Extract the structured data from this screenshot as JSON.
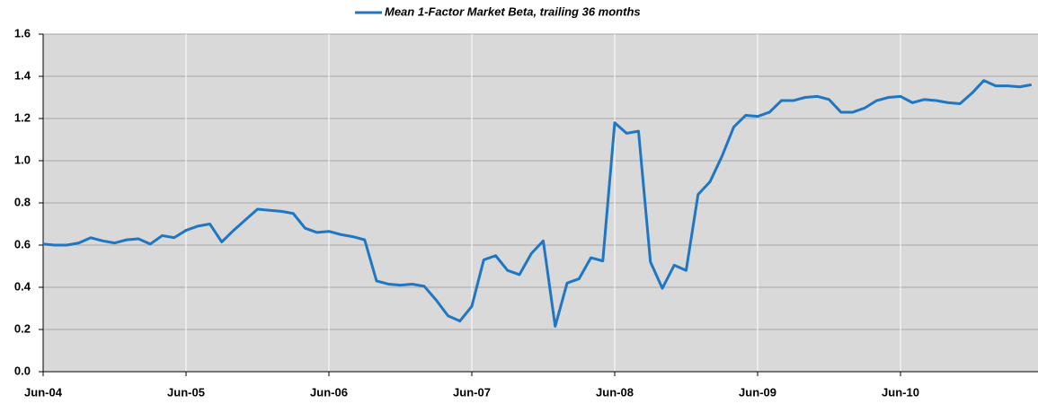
{
  "chart_data": {
    "type": "line",
    "categories": [
      "Jun-04",
      null,
      null,
      null,
      null,
      null,
      null,
      null,
      null,
      null,
      null,
      null,
      "Jun-05",
      null,
      null,
      null,
      null,
      null,
      null,
      null,
      null,
      null,
      null,
      null,
      "Jun-06",
      null,
      null,
      null,
      null,
      null,
      null,
      null,
      null,
      null,
      null,
      null,
      "Jun-07",
      null,
      null,
      null,
      null,
      null,
      null,
      null,
      null,
      null,
      null,
      null,
      "Jun-08",
      null,
      null,
      null,
      null,
      null,
      null,
      null,
      null,
      null,
      null,
      null,
      "Jun-09",
      null,
      null,
      null,
      null,
      null,
      null,
      null,
      null,
      null,
      null,
      null,
      "Jun-10",
      null,
      null,
      null,
      null,
      null,
      null,
      null,
      null,
      null,
      null,
      null
    ],
    "series": [
      {
        "name": "Mean 1-Factor Market Beta, trailing 36 months",
        "color": "#1f77c4",
        "values": [
          0.605,
          0.6,
          0.6,
          0.61,
          0.635,
          0.62,
          0.61,
          0.625,
          0.63,
          0.605,
          0.645,
          0.635,
          0.67,
          0.69,
          0.7,
          0.615,
          0.67,
          0.72,
          0.77,
          0.765,
          0.76,
          0.75,
          0.68,
          0.66,
          0.665,
          0.65,
          0.64,
          0.625,
          0.43,
          0.415,
          0.41,
          0.415,
          0.405,
          0.34,
          0.265,
          0.24,
          0.31,
          0.53,
          0.55,
          0.48,
          0.46,
          0.56,
          0.62,
          0.215,
          0.42,
          0.44,
          0.54,
          0.525,
          1.18,
          1.13,
          1.14,
          0.52,
          0.395,
          0.505,
          0.48,
          0.84,
          0.9,
          1.02,
          1.16,
          1.215,
          1.21,
          1.23,
          1.285,
          1.285,
          1.3,
          1.305,
          1.29,
          1.23,
          1.23,
          1.25,
          1.285,
          1.3,
          1.305,
          1.275,
          1.29,
          1.285,
          1.275,
          1.27,
          1.32,
          1.38,
          1.355,
          1.355,
          1.35,
          1.36
        ]
      }
    ],
    "ylim": [
      0,
      1.6
    ],
    "yticks": [
      {
        "value": 0,
        "label": "0.0"
      },
      0.2,
      0.4,
      0.6,
      0.8,
      {
        "value": 1,
        "label": "1.0"
      },
      1.2,
      1.4,
      1.6
    ],
    "grid": true,
    "legend": "top"
  }
}
